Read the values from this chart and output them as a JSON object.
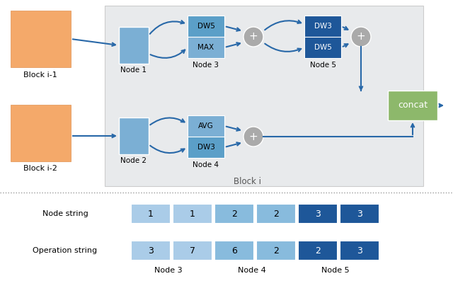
{
  "fig_width": 6.4,
  "fig_height": 4.21,
  "dpi": 100,
  "orange_color": "#f4a96a",
  "light_blue": "#7bafd4",
  "mid_blue": "#5b9fc8",
  "dark_blue": "#1e5799",
  "green_color": "#8db86b",
  "gray_circle": "#aaaaaa",
  "arrow_color": "#2868a8",
  "block_bg": "#e8eaec",
  "node_light1": "#aacce8",
  "node_light2": "#88bbdd",
  "node_dark": "#1e5799",
  "node_string_values": [
    "1",
    "1",
    "2",
    "2",
    "3",
    "3"
  ],
  "op_string_values": [
    "3",
    "7",
    "6",
    "2",
    "2",
    "3"
  ]
}
